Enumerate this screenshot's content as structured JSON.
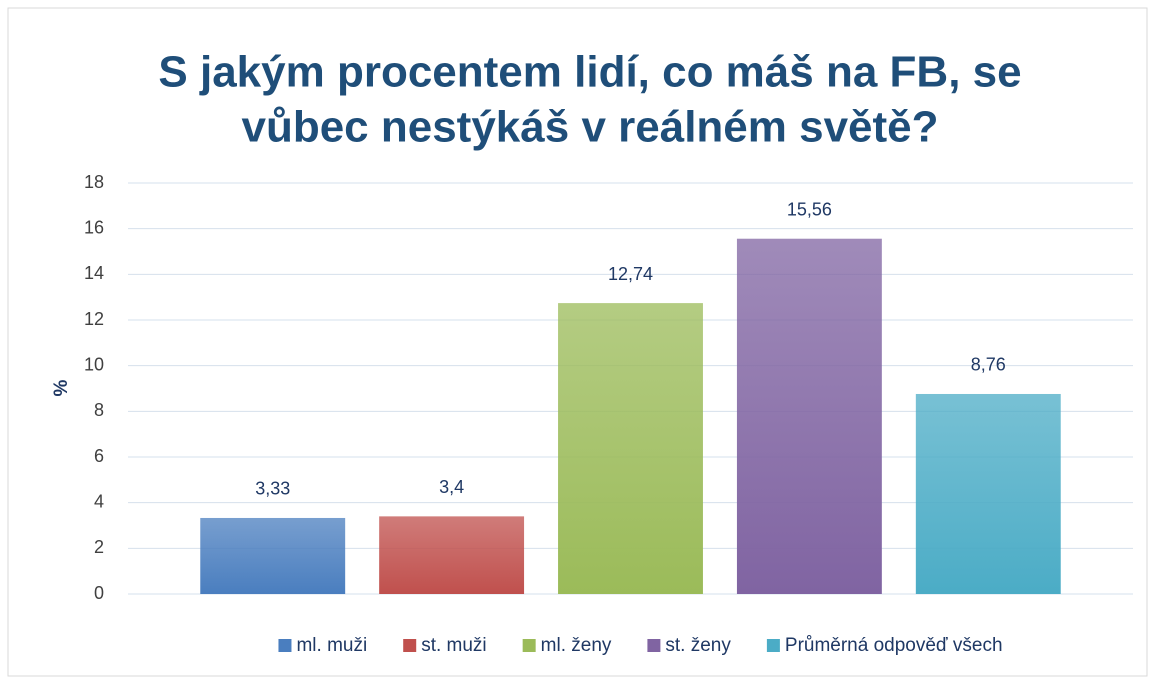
{
  "chart_data": {
    "type": "bar",
    "title": [
      "S jakým procentem lidí, co máš na FB, se",
      "vůbec nestýkáš v reálném světě?"
    ],
    "ylabel": "%",
    "categories": [
      null
    ],
    "series": [
      {
        "name": "ml. muži",
        "color": "#4a7ebf",
        "values": [
          3.33
        ],
        "value_labels": [
          "3,33"
        ]
      },
      {
        "name": "st. muži",
        "color": "#c0504d",
        "values": [
          3.4
        ],
        "value_labels": [
          "3,4"
        ]
      },
      {
        "name": "ml. ženy",
        "color": "#9bbb59",
        "values": [
          12.74
        ],
        "value_labels": [
          "12,74"
        ]
      },
      {
        "name": "st. ženy",
        "color": "#8064a2",
        "values": [
          15.56
        ],
        "value_labels": [
          "15,56"
        ]
      },
      {
        "name": "Průměrná odpověď všech",
        "color": "#4bacc6",
        "values": [
          8.76
        ],
        "value_labels": [
          "8,76"
        ]
      }
    ],
    "ylim": [
      0,
      18
    ],
    "yticks": [
      0,
      2,
      4,
      6,
      8,
      10,
      12,
      14,
      16,
      18
    ],
    "grid": true,
    "legend": "bottom"
  }
}
